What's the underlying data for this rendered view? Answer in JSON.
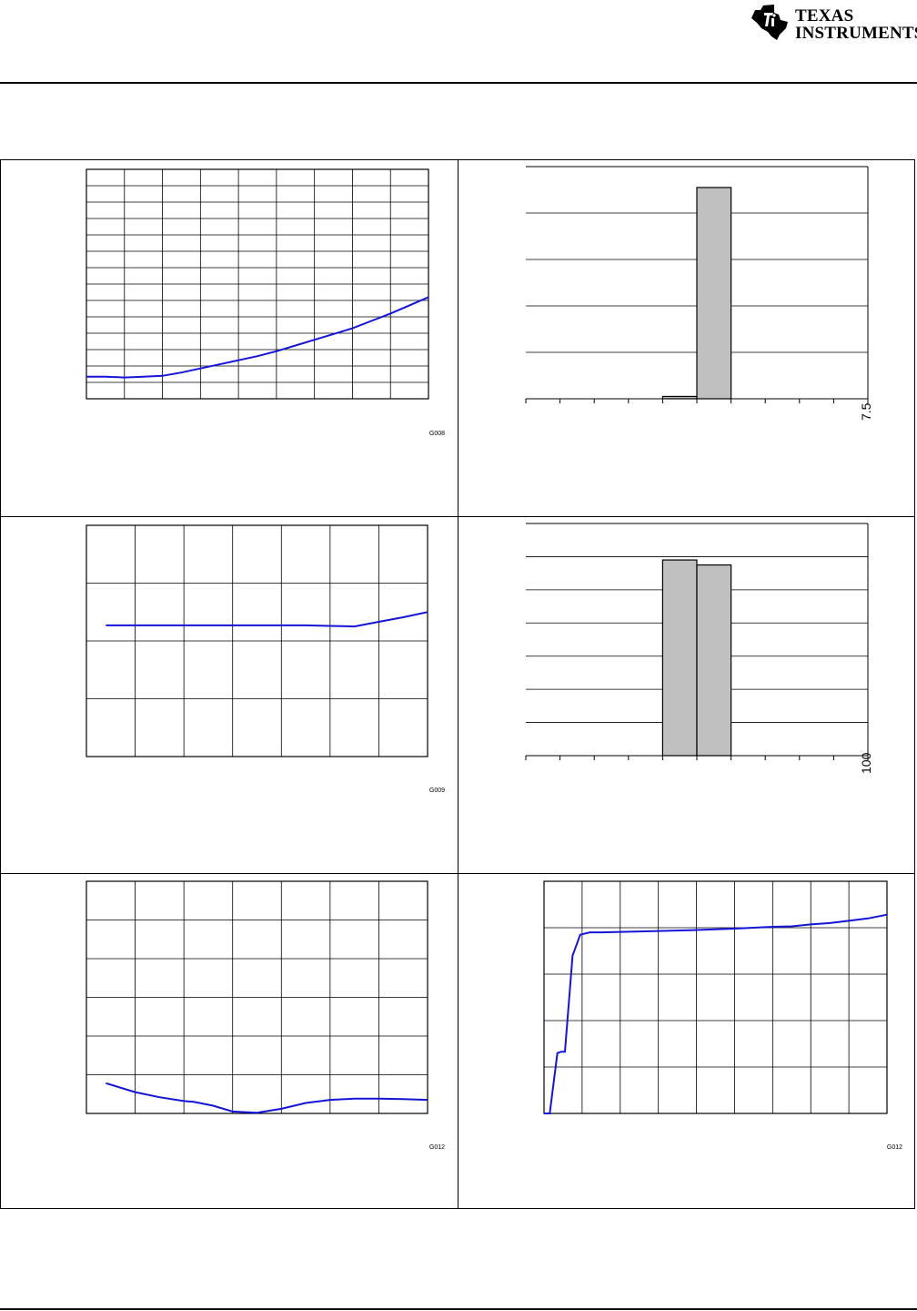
{
  "header": {
    "logo_line1": "Texas",
    "logo_line2": "Instruments"
  },
  "colors": {
    "line": "#1414d8",
    "bar_fill": "#c0c0c0"
  },
  "chart_data": [
    {
      "type": "line",
      "panel": "top-left",
      "grid": true,
      "xlim": [
        0,
        9
      ],
      "ylim": [
        0,
        14
      ],
      "x": [
        0,
        0.5,
        1,
        1.5,
        2,
        2.5,
        3,
        3.5,
        4,
        4.5,
        5,
        5.5,
        6,
        6.5,
        7,
        7.5,
        8,
        8.5,
        9
      ],
      "y": [
        1.35,
        1.35,
        1.3,
        1.35,
        1.4,
        1.6,
        1.85,
        2.1,
        2.35,
        2.6,
        2.9,
        3.25,
        3.6,
        3.95,
        4.3,
        4.75,
        5.2,
        5.7,
        6.2
      ],
      "id_label": "G008"
    },
    {
      "type": "bar",
      "panel": "top-right",
      "grid": true,
      "xlim": [
        0,
        10
      ],
      "ylim": [
        0,
        5
      ],
      "bins": [
        [
          4,
          5
        ],
        [
          5,
          6
        ]
      ],
      "values": [
        0.05,
        4.55
      ],
      "x_tick_label": "7.5"
    },
    {
      "type": "line",
      "panel": "middle-left",
      "grid": true,
      "xlim": [
        0,
        7
      ],
      "ylim": [
        0,
        4
      ],
      "x": [
        0.4,
        1,
        2,
        3,
        4,
        4.5,
        5,
        5.5,
        6,
        6.5,
        7
      ],
      "y": [
        2.27,
        2.27,
        2.27,
        2.27,
        2.27,
        2.27,
        2.26,
        2.25,
        2.33,
        2.41,
        2.5
      ],
      "id_label": "G009"
    },
    {
      "type": "bar",
      "panel": "middle-right",
      "grid": true,
      "xlim": [
        0,
        10
      ],
      "ylim": [
        0,
        7
      ],
      "bins": [
        [
          4,
          5
        ],
        [
          5,
          6
        ]
      ],
      "values": [
        5.9,
        5.75
      ],
      "x_tick_label": "100"
    },
    {
      "type": "line",
      "panel": "bottom-left",
      "grid": true,
      "xlim": [
        0,
        7
      ],
      "ylim": [
        0,
        6
      ],
      "x": [
        0.4,
        1,
        1.5,
        2,
        2.2,
        2.6,
        3,
        3.5,
        4,
        4.5,
        5,
        5.5,
        6,
        6.5,
        7
      ],
      "y": [
        0.78,
        0.55,
        0.42,
        0.32,
        0.3,
        0.2,
        0.05,
        0.02,
        0.12,
        0.27,
        0.35,
        0.38,
        0.38,
        0.37,
        0.35
      ],
      "id_label": "G012"
    },
    {
      "type": "line",
      "panel": "bottom-right",
      "grid": true,
      "xlim": [
        0,
        9
      ],
      "ylim": [
        0,
        5
      ],
      "x": [
        0,
        0.15,
        0.35,
        0.45,
        0.55,
        0.75,
        0.95,
        1.2,
        1.5,
        2,
        3,
        4,
        5,
        6,
        6.5,
        7,
        7.5,
        8,
        8.5,
        9
      ],
      "y": [
        0,
        0,
        1.3,
        1.33,
        1.33,
        3.4,
        3.85,
        3.9,
        3.9,
        3.91,
        3.93,
        3.95,
        3.98,
        4.02,
        4.03,
        4.07,
        4.1,
        4.15,
        4.2,
        4.28
      ],
      "id_label": "G012"
    }
  ]
}
